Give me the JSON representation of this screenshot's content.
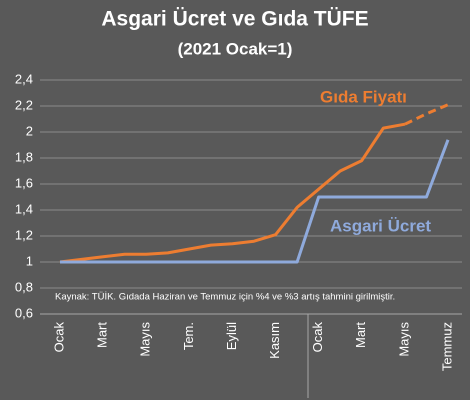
{
  "chart_data": {
    "type": "line",
    "title": "Asgari Ücret ve Gıda TÜFE",
    "subtitle": "(2021 Ocak=1)",
    "annotation": "Kaynak: TÜİK. Gıdada Haziran ve Temmuz için %4 ve %3 artış tahmini girilmiştir.",
    "categories": [
      "Ocak",
      null,
      "Mart",
      null,
      "Mayıs",
      null,
      "Tem.",
      null,
      "Eylül",
      null,
      "Kasım",
      null,
      "Ocak",
      null,
      "Mart",
      null,
      "Mayıs",
      null,
      "Temmuz"
    ],
    "series": [
      {
        "name": "Gıda Fiyatı",
        "color": "#ed7d31",
        "dash_from": 16,
        "values": [
          1.0,
          1.02,
          1.04,
          1.06,
          1.06,
          1.07,
          1.1,
          1.13,
          1.14,
          1.16,
          1.21,
          1.42,
          1.56,
          1.7,
          1.78,
          2.03,
          2.06,
          2.14,
          2.21
        ]
      },
      {
        "name": "Asgari Ücret",
        "color": "#8faadc",
        "values": [
          1.0,
          1.0,
          1.0,
          1.0,
          1.0,
          1.0,
          1.0,
          1.0,
          1.0,
          1.0,
          1.0,
          1.0,
          1.5,
          1.5,
          1.5,
          1.5,
          1.5,
          1.5,
          1.94
        ]
      }
    ],
    "ylim": [
      0.6,
      2.4
    ],
    "yticks": [
      {
        "value": 0.6,
        "label": "0,6"
      },
      {
        "value": 0.8,
        "label": "0,8"
      },
      1,
      {
        "value": 1.2,
        "label": "1,2"
      },
      {
        "value": 1.4,
        "label": "1,4"
      },
      {
        "value": 1.6,
        "label": "1,6"
      },
      {
        "value": 1.8,
        "label": "1,8"
      },
      2,
      {
        "value": 2.2,
        "label": "2,2"
      },
      {
        "value": 2.4,
        "label": "2,4"
      }
    ],
    "grid": true
  }
}
